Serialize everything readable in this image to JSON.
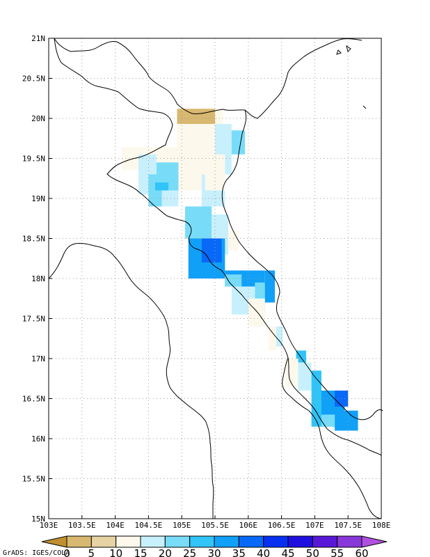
{
  "map": {
    "lon_range": [
      103,
      108
    ],
    "lat_range": [
      15,
      21
    ],
    "grid": true,
    "lon_ticks": [
      {
        "value": 103,
        "label": "103E"
      },
      {
        "value": 103.5,
        "label": "103.5E"
      },
      {
        "value": 104,
        "label": "104E"
      },
      {
        "value": 104.5,
        "label": "104.5E"
      },
      {
        "value": 105,
        "label": "105E"
      },
      {
        "value": 105.5,
        "label": "105.5E"
      },
      {
        "value": 106,
        "label": "106E"
      },
      {
        "value": 106.5,
        "label": "106.5E"
      },
      {
        "value": 107,
        "label": "107E"
      },
      {
        "value": 107.5,
        "label": "107.5E"
      },
      {
        "value": 108,
        "label": "108E"
      }
    ],
    "lat_ticks": [
      {
        "value": 15,
        "label": "15N"
      },
      {
        "value": 15.5,
        "label": "15.5N"
      },
      {
        "value": 16,
        "label": "16N"
      },
      {
        "value": 16.5,
        "label": "16.5N"
      },
      {
        "value": 17,
        "label": "17N"
      },
      {
        "value": 17.5,
        "label": "17.5N"
      },
      {
        "value": 18,
        "label": "18N"
      },
      {
        "value": 18.5,
        "label": "18.5N"
      },
      {
        "value": 19,
        "label": "19N"
      },
      {
        "value": 19.5,
        "label": "19.5N"
      },
      {
        "value": 20,
        "label": "20N"
      },
      {
        "value": 20.5,
        "label": "20.5N"
      },
      {
        "value": 21,
        "label": "21N"
      }
    ]
  },
  "colorbar": {
    "labels": [
      "0",
      "5",
      "10",
      "15",
      "20",
      "25",
      "30",
      "35",
      "40",
      "45",
      "50",
      "55",
      "60"
    ],
    "colors": [
      "#c09030",
      "#d8b870",
      "#e6d2a2",
      "#fcf8ec",
      "#c8f0fc",
      "#78dcf8",
      "#30c4f8",
      "#10a0f8",
      "#0868f8",
      "#0830f0",
      "#2010e0",
      "#5818d8",
      "#8838d8",
      "#b050e0"
    ]
  },
  "credit": "GrADS: IGES/COLA",
  "chart_data": {
    "type": "heatmap",
    "x_axis": "longitude",
    "y_axis": "latitude",
    "xlim": [
      103,
      108
    ],
    "ylim": [
      15,
      21
    ],
    "levels": [
      0,
      5,
      10,
      15,
      20,
      25,
      30,
      35,
      40,
      45,
      50,
      55,
      60
    ],
    "cells": [
      {
        "lon": [
          104.93,
          105.5
        ],
        "lat": [
          19.93,
          20.12
        ],
        "level": 0
      },
      {
        "lon": [
          104.93,
          105.5
        ],
        "lat": [
          19.1,
          19.93
        ],
        "level": 2
      },
      {
        "lon": [
          105.5,
          105.62
        ],
        "lat": [
          19.93,
          20.12
        ],
        "level": 2
      },
      {
        "lon": [
          104.1,
          104.45
        ],
        "lat": [
          19.36,
          19.64
        ],
        "level": 2
      },
      {
        "lon": [
          104.45,
          104.93
        ],
        "lat": [
          19.36,
          19.64
        ],
        "level": 2
      },
      {
        "lon": [
          105.5,
          105.75
        ],
        "lat": [
          19.3,
          19.93
        ],
        "level": 3
      },
      {
        "lon": [
          105.75,
          105.95
        ],
        "lat": [
          19.55,
          19.85
        ],
        "level": 4
      },
      {
        "lon": [
          105.3,
          105.65
        ],
        "lat": [
          18.9,
          19.3
        ],
        "level": 3
      },
      {
        "lon": [
          105.35,
          105.65
        ],
        "lat": [
          19.1,
          19.55
        ],
        "level": 2
      },
      {
        "lon": [
          104.35,
          104.62
        ],
        "lat": [
          19.05,
          19.55
        ],
        "level": 3
      },
      {
        "lon": [
          104.62,
          104.95
        ],
        "lat": [
          19.0,
          19.45
        ],
        "level": 4
      },
      {
        "lon": [
          104.7,
          104.95
        ],
        "lat": [
          18.9,
          19.1
        ],
        "level": 3
      },
      {
        "lon": [
          104.5,
          104.7
        ],
        "lat": [
          18.9,
          19.3
        ],
        "level": 4
      },
      {
        "lon": [
          104.6,
          104.8
        ],
        "lat": [
          19.1,
          19.2
        ],
        "level": 5
      },
      {
        "lon": [
          105.05,
          105.45
        ],
        "lat": [
          18.5,
          18.9
        ],
        "level": 4
      },
      {
        "lon": [
          105.45,
          105.7
        ],
        "lat": [
          18.3,
          18.8
        ],
        "level": 3
      },
      {
        "lon": [
          105.7,
          105.85
        ],
        "lat": [
          18.35,
          18.6
        ],
        "level": 2
      },
      {
        "lon": [
          105.1,
          105.65
        ],
        "lat": [
          18.0,
          18.5
        ],
        "level": 6
      },
      {
        "lon": [
          105.3,
          105.6
        ],
        "lat": [
          18.2,
          18.5
        ],
        "level": 7
      },
      {
        "lon": [
          105.65,
          106.25
        ],
        "lat": [
          17.9,
          18.1
        ],
        "level": 6
      },
      {
        "lon": [
          105.65,
          105.9
        ],
        "lat": [
          17.9,
          18.05
        ],
        "level": 4
      },
      {
        "lon": [
          105.75,
          106.1
        ],
        "lat": [
          17.55,
          17.9
        ],
        "level": 3
      },
      {
        "lon": [
          106.1,
          106.25
        ],
        "lat": [
          17.6,
          17.95
        ],
        "level": 4
      },
      {
        "lon": [
          106.25,
          106.4
        ],
        "lat": [
          17.7,
          18.1
        ],
        "level": 6
      },
      {
        "lon": [
          106.0,
          106.25
        ],
        "lat": [
          17.4,
          17.75
        ],
        "level": 2
      },
      {
        "lon": [
          106.3,
          106.42
        ],
        "lat": [
          17.1,
          17.4
        ],
        "level": 2
      },
      {
        "lon": [
          106.42,
          106.52
        ],
        "lat": [
          17.15,
          17.4
        ],
        "level": 3
      },
      {
        "lon": [
          106.72,
          106.87
        ],
        "lat": [
          16.95,
          17.1
        ],
        "level": 5
      },
      {
        "lon": [
          106.55,
          106.75
        ],
        "lat": [
          16.65,
          17.0
        ],
        "level": 2
      },
      {
        "lon": [
          106.75,
          106.95
        ],
        "lat": [
          16.6,
          16.95
        ],
        "level": 3
      },
      {
        "lon": [
          106.95,
          107.1
        ],
        "lat": [
          16.6,
          16.85
        ],
        "level": 5
      },
      {
        "lon": [
          106.95,
          107.3
        ],
        "lat": [
          16.15,
          16.6
        ],
        "level": 5
      },
      {
        "lon": [
          107.1,
          107.45
        ],
        "lat": [
          16.3,
          16.6
        ],
        "level": 6
      },
      {
        "lon": [
          107.3,
          107.5
        ],
        "lat": [
          16.4,
          16.6
        ],
        "level": 7
      },
      {
        "lon": [
          107.3,
          107.65
        ],
        "lat": [
          16.1,
          16.35
        ],
        "level": 6
      },
      {
        "lon": [
          107.1,
          107.3
        ],
        "lat": [
          16.15,
          16.3
        ],
        "level": 4
      }
    ]
  }
}
